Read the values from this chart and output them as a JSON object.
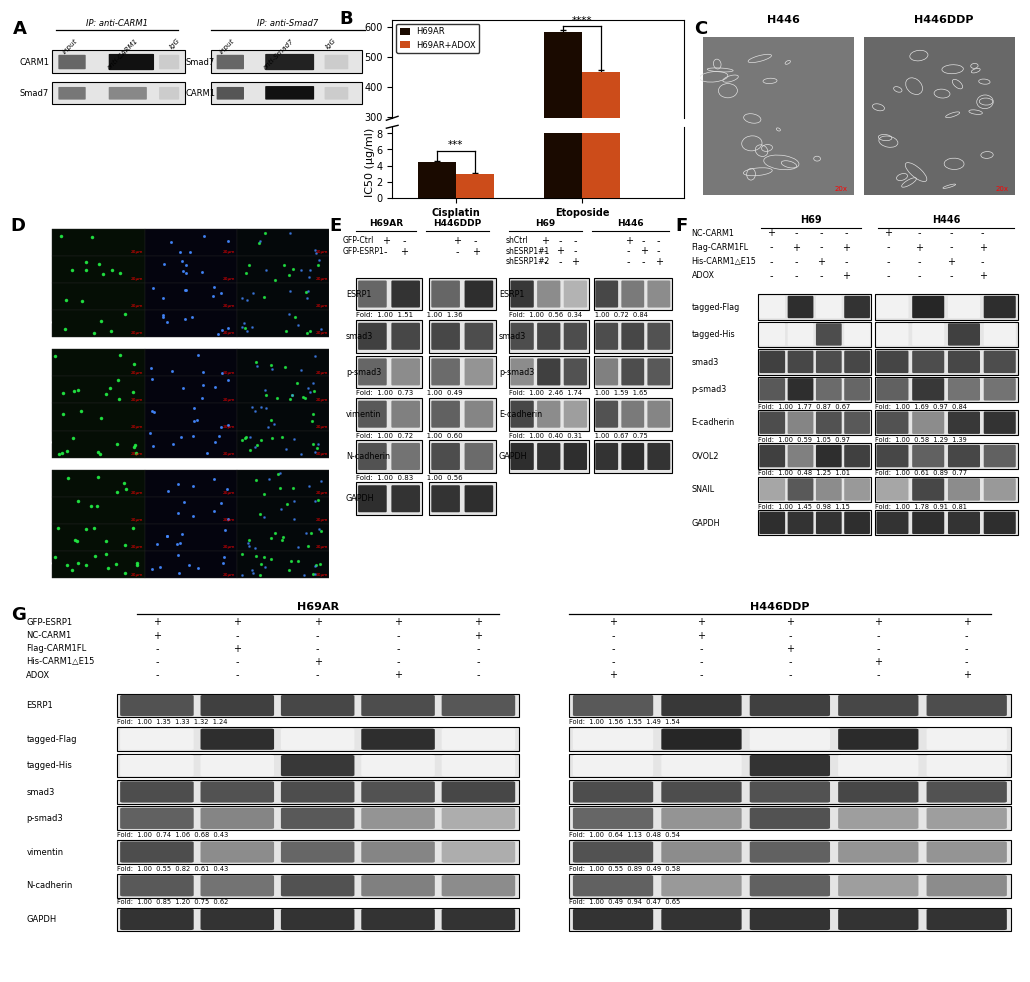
{
  "background_color": "#ffffff",
  "panel_label_fontsize": 13,
  "bar_chart": {
    "h69ar_color": "#1a0a00",
    "adox_color": "#cc4c1a",
    "cisplatin_h69ar": 4.5,
    "cisplatin_adox": 3.0,
    "etoposide_h69ar": 585,
    "etoposide_adox": 450,
    "yticks_lower": [
      0,
      2,
      4,
      6,
      8
    ],
    "yticks_upper": [
      300,
      400,
      500,
      600
    ],
    "ylabel": "IC50 (μg/ml)"
  },
  "wb_bg": "#d8d8d8",
  "wb_band_dark": "#1a1a1a",
  "wb_band_mid": "#555555",
  "wb_band_light": "#aaaaaa",
  "wb_band_faint": "#cccccc",
  "fold_fontsize": 5.5,
  "label_fontsize": 6.0,
  "cond_fontsize": 6.5,
  "header_fontsize": 7.5
}
